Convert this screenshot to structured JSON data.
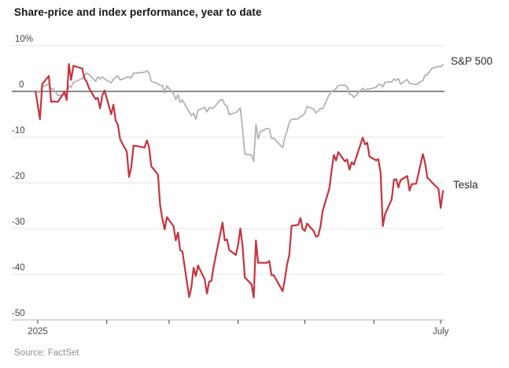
{
  "title": "Share-price and index performance, year to date",
  "source_note": "Source: FactSet",
  "legend": {
    "sp500": "S&P 500",
    "tesla": "Tesla"
  },
  "colors": {
    "tesla_red": "#c8333d",
    "sp_gray": "#b3b3b3",
    "zero_line": "#8a8a8a",
    "grid": "#e6e6e6",
    "axis_line": "#b5b5b5",
    "tick": "#3c3c3c",
    "y_label": "#444444",
    "x_label": "#4d4d4d"
  },
  "chart_data": {
    "type": "line",
    "title": "Share-price and index performance, year to date",
    "y_unit": "%",
    "ylim": [
      -50,
      10
    ],
    "grid": "horizontal",
    "legend_position": "right-of-line-ends",
    "yticks": [
      {
        "v": 10,
        "label": "10%"
      },
      {
        "v": 0,
        "label": "0"
      },
      {
        "v": -10,
        "label": "-10"
      },
      {
        "v": -20,
        "label": "-20"
      },
      {
        "v": -30,
        "label": "-30"
      },
      {
        "v": -40,
        "label": "-40"
      },
      {
        "v": -50,
        "label": "-50"
      }
    ],
    "xticks": [
      {
        "date": "2025-01-01",
        "label": "2025"
      },
      {
        "date": "2025-02-01",
        "label": ""
      },
      {
        "date": "2025-03-01",
        "label": ""
      },
      {
        "date": "2025-04-01",
        "label": ""
      },
      {
        "date": "2025-05-01",
        "label": ""
      },
      {
        "date": "2025-06-01",
        "label": ""
      },
      {
        "date": "2025-07-01",
        "label": "July"
      }
    ],
    "dates": [
      "2024-12-31",
      "2025-01-02",
      "2025-01-03",
      "2025-01-06",
      "2025-01-07",
      "2025-01-08",
      "2025-01-10",
      "2025-01-13",
      "2025-01-14",
      "2025-01-15",
      "2025-01-16",
      "2025-01-17",
      "2025-01-21",
      "2025-01-22",
      "2025-01-23",
      "2025-01-24",
      "2025-01-27",
      "2025-01-28",
      "2025-01-29",
      "2025-01-30",
      "2025-01-31",
      "2025-02-03",
      "2025-02-04",
      "2025-02-05",
      "2025-02-06",
      "2025-02-07",
      "2025-02-10",
      "2025-02-11",
      "2025-02-12",
      "2025-02-13",
      "2025-02-14",
      "2025-02-18",
      "2025-02-19",
      "2025-02-20",
      "2025-02-21",
      "2025-02-24",
      "2025-02-25",
      "2025-02-26",
      "2025-02-27",
      "2025-02-28",
      "2025-03-03",
      "2025-03-04",
      "2025-03-05",
      "2025-03-06",
      "2025-03-07",
      "2025-03-10",
      "2025-03-11",
      "2025-03-12",
      "2025-03-13",
      "2025-03-14",
      "2025-03-17",
      "2025-03-18",
      "2025-03-19",
      "2025-03-20",
      "2025-03-21",
      "2025-03-24",
      "2025-03-25",
      "2025-03-26",
      "2025-03-27",
      "2025-03-28",
      "2025-03-31",
      "2025-04-01",
      "2025-04-02",
      "2025-04-03",
      "2025-04-04",
      "2025-04-07",
      "2025-04-08",
      "2025-04-09",
      "2025-04-10",
      "2025-04-11",
      "2025-04-14",
      "2025-04-15",
      "2025-04-16",
      "2025-04-17",
      "2025-04-21",
      "2025-04-22",
      "2025-04-23",
      "2025-04-24",
      "2025-04-25",
      "2025-04-28",
      "2025-04-29",
      "2025-04-30",
      "2025-05-01",
      "2025-05-02",
      "2025-05-05",
      "2025-05-06",
      "2025-05-07",
      "2025-05-08",
      "2025-05-09",
      "2025-05-12",
      "2025-05-13",
      "2025-05-14",
      "2025-05-15",
      "2025-05-16",
      "2025-05-19",
      "2025-05-20",
      "2025-05-21",
      "2025-05-22",
      "2025-05-23",
      "2025-05-27",
      "2025-05-28",
      "2025-05-29",
      "2025-05-30",
      "2025-06-02",
      "2025-06-03",
      "2025-06-04",
      "2025-06-05",
      "2025-06-06",
      "2025-06-09",
      "2025-06-10",
      "2025-06-11",
      "2025-06-12",
      "2025-06-13",
      "2025-06-16",
      "2025-06-17",
      "2025-06-18",
      "2025-06-20",
      "2025-06-23",
      "2025-06-24",
      "2025-06-25",
      "2025-06-26",
      "2025-06-27",
      "2025-06-30",
      "2025-07-01",
      "2025-07-02"
    ],
    "series": [
      {
        "name": "S&P 500",
        "color": "#b3b3b3",
        "values": [
          0,
          -0.2,
          1.0,
          1.6,
          0.5,
          0.6,
          -0.9,
          -0.8,
          -0.7,
          1.2,
          0.9,
          2.0,
          2.8,
          3.5,
          4.0,
          3.7,
          2.2,
          3.2,
          2.7,
          3.2,
          2.7,
          1.9,
          2.7,
          3.1,
          3.4,
          2.5,
          3.1,
          3.2,
          2.9,
          4.0,
          4.0,
          4.2,
          4.5,
          4.0,
          2.2,
          1.7,
          1.3,
          1.3,
          -0.3,
          1.2,
          -0.5,
          -1.8,
          -0.7,
          -2.4,
          -1.9,
          -4.5,
          -5.3,
          -4.8,
          -6.1,
          -4.1,
          -3.5,
          -4.5,
          -3.5,
          -3.7,
          -3.6,
          -1.9,
          -1.8,
          -2.9,
          -3.2,
          -5.1,
          -4.6,
          -4.2,
          -3.6,
          -8.2,
          -13.7,
          -13.9,
          -15.3,
          -7.2,
          -10.4,
          -8.8,
          -8.1,
          -8.2,
          -10.3,
          -10.2,
          -12.3,
          -10.1,
          -8.6,
          -6.7,
          -6.1,
          -6.0,
          -5.5,
          -5.3,
          -4.7,
          -3.3,
          -3.9,
          -4.7,
          -4.3,
          -3.7,
          -3.8,
          -0.6,
          0.1,
          0.2,
          0.6,
          1.3,
          1.4,
          1.0,
          -0.6,
          -0.7,
          -1.3,
          0.7,
          0.1,
          0.5,
          0.5,
          0.9,
          1.5,
          1.5,
          1.0,
          2.0,
          2.1,
          2.7,
          2.4,
          2.8,
          1.6,
          2.6,
          1.7,
          1.7,
          1.5,
          2.4,
          3.6,
          3.6,
          4.4,
          5.0,
          5.5,
          5.4,
          5.9
        ]
      },
      {
        "name": "Tesla",
        "color": "#c8333d",
        "values": [
          0,
          -6.1,
          1.6,
          3.4,
          -2.3,
          -2.2,
          -2.3,
          -0.1,
          -1.9,
          6.0,
          2.5,
          5.6,
          5.0,
          2.8,
          2.1,
          0.7,
          -1.7,
          -1.4,
          -3.7,
          -0.9,
          0.2,
          -5.0,
          -2.9,
          -6.4,
          -7.3,
          -10.5,
          -13.2,
          -18.7,
          -16.7,
          -11.9,
          -11.9,
          -12.3,
          -10.7,
          -12.2,
          -16.4,
          -18.2,
          -25.0,
          -28.0,
          -30.2,
          -27.5,
          -29.5,
          -32.6,
          -30.9,
          -34.8,
          -35.0,
          -45.0,
          -42.9,
          -38.6,
          -40.4,
          -38.1,
          -41.1,
          -44.2,
          -41.6,
          -41.5,
          -38.4,
          -31.1,
          -28.7,
          -32.6,
          -32.4,
          -34.7,
          -35.8,
          -33.5,
          -30.0,
          -33.8,
          -40.7,
          -42.2,
          -45.1,
          -32.6,
          -37.5,
          -37.5,
          -37.5,
          -37.1,
          -40.2,
          -40.2,
          -43.7,
          -41.1,
          -37.9,
          -35.7,
          -29.4,
          -29.2,
          -27.7,
          -30.1,
          -30.5,
          -28.9,
          -30.6,
          -31.8,
          -31.6,
          -29.5,
          -26.1,
          -21.2,
          -17.3,
          -13.9,
          -15.1,
          -13.3,
          -15.3,
          -14.9,
          -17.1,
          -15.5,
          -16.0,
          -10.1,
          -11.6,
          -11.2,
          -14.2,
          -15.1,
          -14.8,
          -17.8,
          -29.5,
          -26.9,
          -23.6,
          -19.3,
          -19.2,
          -21.0,
          -19.4,
          -18.5,
          -21.7,
          -20.3,
          -20.2,
          -13.7,
          -15.7,
          -18.9,
          -19.3,
          -19.9,
          -21.3,
          -25.5,
          -21.8
        ]
      }
    ]
  }
}
